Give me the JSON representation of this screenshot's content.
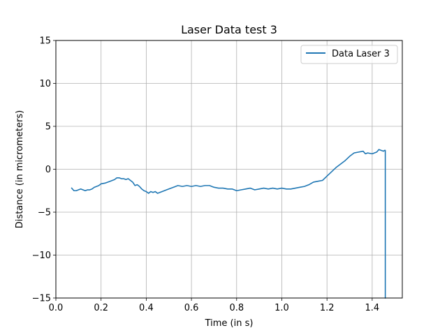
{
  "chart_data": {
    "type": "line",
    "title": "Laser Data test 3",
    "xlabel": "Time (in s)",
    "ylabel": "Distance (in micrometers)",
    "xlim": [
      0.0,
      1.5333
    ],
    "ylim": [
      -15,
      15
    ],
    "xticks": [
      0.0,
      0.2,
      0.4,
      0.6,
      0.8,
      1.0,
      1.2,
      1.4
    ],
    "xtick_labels": [
      "0.0",
      "0.2",
      "0.4",
      "0.6",
      "0.8",
      "1.0",
      "1.2",
      "1.4"
    ],
    "yticks": [
      -15,
      -10,
      -5,
      0,
      5,
      10,
      15
    ],
    "ytick_labels": [
      "−15",
      "−10",
      "−5",
      "0",
      "5",
      "10",
      "15"
    ],
    "grid": true,
    "legend_position": "top-right",
    "colors": {
      "series": "#1f77b4",
      "grid": "#b0b0b0",
      "axes": "#000000"
    },
    "series": [
      {
        "name": "Data Laser 3",
        "x": [
          0.07,
          0.08,
          0.09,
          0.1,
          0.11,
          0.12,
          0.13,
          0.14,
          0.15,
          0.16,
          0.17,
          0.18,
          0.19,
          0.2,
          0.22,
          0.24,
          0.26,
          0.27,
          0.28,
          0.29,
          0.3,
          0.31,
          0.32,
          0.33,
          0.34,
          0.35,
          0.36,
          0.37,
          0.38,
          0.39,
          0.4,
          0.41,
          0.42,
          0.43,
          0.44,
          0.45,
          0.46,
          0.47,
          0.48,
          0.5,
          0.52,
          0.54,
          0.56,
          0.58,
          0.6,
          0.62,
          0.64,
          0.66,
          0.68,
          0.7,
          0.72,
          0.74,
          0.76,
          0.78,
          0.8,
          0.82,
          0.84,
          0.86,
          0.88,
          0.9,
          0.92,
          0.94,
          0.96,
          0.98,
          1.0,
          1.02,
          1.04,
          1.06,
          1.08,
          1.1,
          1.12,
          1.14,
          1.16,
          1.18,
          1.2,
          1.22,
          1.24,
          1.26,
          1.28,
          1.3,
          1.32,
          1.34,
          1.36,
          1.37,
          1.38,
          1.4,
          1.42,
          1.43,
          1.44,
          1.45,
          1.455,
          1.458,
          1.458
        ],
        "y": [
          -2.2,
          -2.5,
          -2.5,
          -2.4,
          -2.3,
          -2.4,
          -2.5,
          -2.4,
          -2.4,
          -2.3,
          -2.1,
          -2.0,
          -1.9,
          -1.7,
          -1.6,
          -1.4,
          -1.2,
          -1.0,
          -1.0,
          -1.1,
          -1.1,
          -1.2,
          -1.1,
          -1.3,
          -1.5,
          -1.9,
          -1.8,
          -2.0,
          -2.3,
          -2.5,
          -2.6,
          -2.8,
          -2.6,
          -2.7,
          -2.6,
          -2.8,
          -2.7,
          -2.6,
          -2.5,
          -2.3,
          -2.1,
          -1.9,
          -2.0,
          -1.9,
          -2.0,
          -1.9,
          -2.0,
          -1.9,
          -1.9,
          -2.1,
          -2.2,
          -2.2,
          -2.3,
          -2.3,
          -2.5,
          -2.4,
          -2.3,
          -2.2,
          -2.4,
          -2.3,
          -2.2,
          -2.3,
          -2.2,
          -2.3,
          -2.2,
          -2.3,
          -2.3,
          -2.2,
          -2.1,
          -2.0,
          -1.8,
          -1.5,
          -1.4,
          -1.3,
          -0.8,
          -0.3,
          0.2,
          0.6,
          1.0,
          1.5,
          1.9,
          2.0,
          2.1,
          1.8,
          1.9,
          1.8,
          2.0,
          2.3,
          2.2,
          2.1,
          2.2,
          2.2,
          -15.0
        ]
      }
    ]
  }
}
